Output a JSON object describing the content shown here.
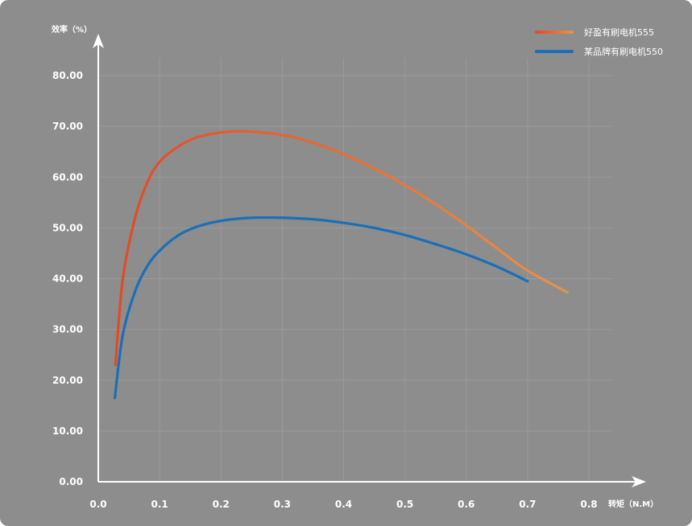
{
  "chart_data": {
    "type": "line",
    "ylabel": "效率（%）",
    "xlabel": "转矩（N.M）",
    "xlim": [
      0.0,
      0.8
    ],
    "ylim": [
      0.0,
      80.0
    ],
    "x_ticks": [
      "0.0",
      "0.1",
      "0.2",
      "0.3",
      "0.4",
      "0.5",
      "0.6",
      "0.7",
      "0.8"
    ],
    "y_ticks": [
      "0.00",
      "10.00",
      "20.00",
      "30.00",
      "40.00",
      "50.00",
      "60.00",
      "70.00",
      "80.00"
    ],
    "grid": true,
    "legend_position": "top-right",
    "series": [
      {
        "name": "好盈有刷电机555",
        "color_start": "#e14a26",
        "color_end": "#e8924a",
        "points": [
          [
            0.028,
            23.0
          ],
          [
            0.04,
            40.0
          ],
          [
            0.06,
            52.0
          ],
          [
            0.08,
            59.0
          ],
          [
            0.1,
            63.0
          ],
          [
            0.13,
            66.0
          ],
          [
            0.16,
            67.8
          ],
          [
            0.2,
            68.8
          ],
          [
            0.24,
            69.0
          ],
          [
            0.3,
            68.3
          ],
          [
            0.35,
            66.8
          ],
          [
            0.4,
            64.5
          ],
          [
            0.45,
            61.7
          ],
          [
            0.5,
            58.4
          ],
          [
            0.55,
            54.7
          ],
          [
            0.6,
            50.5
          ],
          [
            0.65,
            46.0
          ],
          [
            0.7,
            41.6
          ],
          [
            0.765,
            37.3
          ]
        ]
      },
      {
        "name": "某品牌有刷电机550",
        "color": "#1a6fb8",
        "points": [
          [
            0.027,
            16.5
          ],
          [
            0.04,
            29.0
          ],
          [
            0.06,
            37.5
          ],
          [
            0.08,
            42.5
          ],
          [
            0.1,
            45.5
          ],
          [
            0.13,
            48.5
          ],
          [
            0.16,
            50.2
          ],
          [
            0.2,
            51.4
          ],
          [
            0.25,
            52.0
          ],
          [
            0.3,
            52.0
          ],
          [
            0.35,
            51.7
          ],
          [
            0.4,
            51.0
          ],
          [
            0.45,
            50.0
          ],
          [
            0.5,
            48.6
          ],
          [
            0.55,
            46.8
          ],
          [
            0.6,
            44.8
          ],
          [
            0.65,
            42.4
          ],
          [
            0.7,
            39.5
          ]
        ]
      }
    ]
  }
}
